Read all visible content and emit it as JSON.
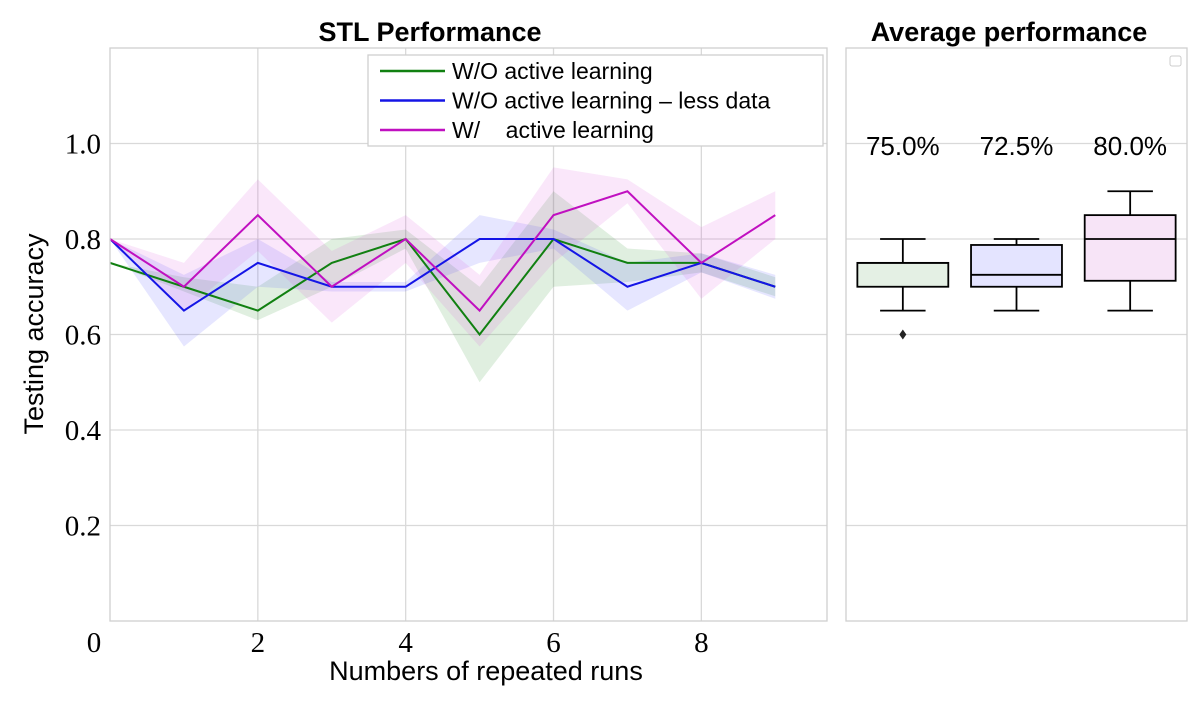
{
  "chart_data": [
    {
      "type": "line",
      "title": "STL Performance",
      "xlabel": "Numbers of repeated runs",
      "ylabel": "Testing accuracy",
      "xlim": [
        0,
        9.7
      ],
      "ylim": [
        0,
        1.2
      ],
      "xticks": [
        0,
        2,
        4,
        6,
        8
      ],
      "yticks": [
        0.2,
        0.4,
        0.6,
        0.8,
        1.0
      ],
      "xtick_labels": [
        "0",
        "2",
        "4",
        "6",
        "8"
      ],
      "ytick_labels": [
        "0.2",
        "0.4",
        "0.6",
        "0.8",
        "1.0"
      ],
      "grid": true,
      "legend": "top-right",
      "x": [
        0,
        1,
        2,
        3,
        4,
        5,
        6,
        7,
        8,
        9
      ],
      "series": [
        {
          "name": "W/O active learning",
          "color": "#118011",
          "band_color": "#118011",
          "values": [
            0.75,
            0.7,
            0.65,
            0.75,
            0.8,
            0.6,
            0.8,
            0.75,
            0.75,
            0.7
          ],
          "lower": [
            0.75,
            0.69,
            0.63,
            0.7,
            0.78,
            0.5,
            0.7,
            0.71,
            0.73,
            0.68
          ],
          "upper": [
            0.75,
            0.72,
            0.7,
            0.8,
            0.82,
            0.7,
            0.9,
            0.78,
            0.77,
            0.72
          ]
        },
        {
          "name": "W/O active learning – less data",
          "color": "#1515e6",
          "band_color": "#3a3aff",
          "values": [
            0.8,
            0.65,
            0.75,
            0.7,
            0.7,
            0.8,
            0.8,
            0.7,
            0.75,
            0.7
          ],
          "lower": [
            0.8,
            0.575,
            0.7,
            0.69,
            0.69,
            0.75,
            0.78,
            0.65,
            0.73,
            0.675
          ],
          "upper": [
            0.8,
            0.725,
            0.8,
            0.71,
            0.71,
            0.85,
            0.82,
            0.75,
            0.77,
            0.725
          ]
        },
        {
          "name": "W/    active learning",
          "color": "#c010c0",
          "band_color": "#d642d6",
          "values": [
            0.8,
            0.7,
            0.85,
            0.7,
            0.8,
            0.65,
            0.85,
            0.9,
            0.75,
            0.85
          ],
          "lower": [
            0.8,
            0.65,
            0.775,
            0.625,
            0.75,
            0.575,
            0.75,
            0.875,
            0.675,
            0.8
          ],
          "upper": [
            0.8,
            0.75,
            0.925,
            0.775,
            0.85,
            0.725,
            0.95,
            0.925,
            0.825,
            0.9
          ]
        }
      ]
    },
    {
      "type": "box",
      "title": "Average performance",
      "ylim": [
        0,
        1.2
      ],
      "grid": true,
      "boxes": [
        {
          "label": "75.0%",
          "fill": "#e4f0e4",
          "min": 0.65,
          "q1": 0.7,
          "median": 0.75,
          "q3": 0.75,
          "max": 0.8,
          "outliers": [
            0.6
          ]
        },
        {
          "label": "72.5%",
          "fill": "#e4e4ff",
          "min": 0.65,
          "q1": 0.7,
          "median": 0.725,
          "q3": 0.7875,
          "max": 0.8,
          "outliers": []
        },
        {
          "label": "80.0%",
          "fill": "#f7e4f7",
          "min": 0.65,
          "q1": 0.7125,
          "median": 0.8,
          "q3": 0.85,
          "max": 0.9,
          "outliers": []
        }
      ]
    }
  ]
}
